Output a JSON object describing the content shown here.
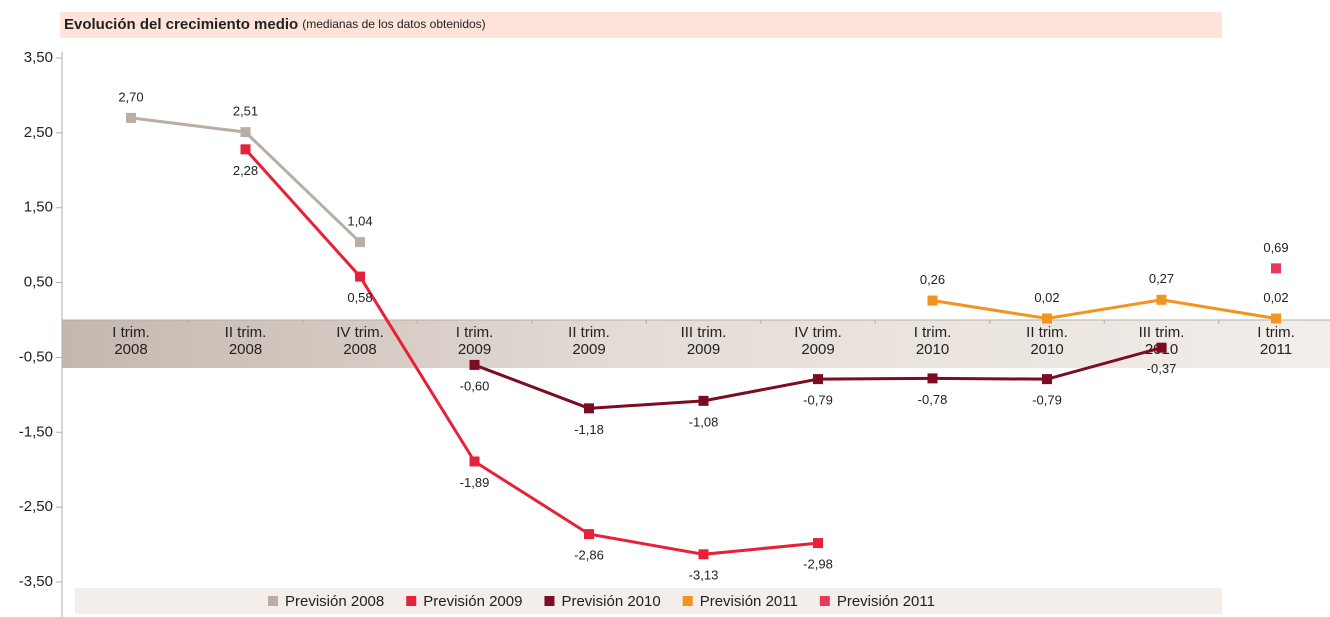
{
  "chart_data": {
    "type": "line",
    "title": "Evolución del crecimiento medio",
    "subtitle": "(medianas de los datos obtenidos)",
    "categories": [
      [
        "I trim.",
        "2008"
      ],
      [
        "II trim.",
        "2008"
      ],
      [
        "IV trim.",
        "2008"
      ],
      [
        "I trim.",
        "2009"
      ],
      [
        "II trim.",
        "2009"
      ],
      [
        "III trim.",
        "2009"
      ],
      [
        "IV trim.",
        "2009"
      ],
      [
        "I trim.",
        "2010"
      ],
      [
        "II trim.",
        "2010"
      ],
      [
        "III trim.",
        "2010"
      ],
      [
        "I trim.",
        "2011"
      ]
    ],
    "series": [
      {
        "name": "Previsión 2008",
        "color": "#b9ada5",
        "label_side": "above",
        "values": [
          2.7,
          2.51,
          1.04,
          null,
          null,
          null,
          null,
          null,
          null,
          null,
          null
        ],
        "value_labels": [
          "2,70",
          "2,51",
          "1,04",
          null,
          null,
          null,
          null,
          null,
          null,
          null,
          null
        ]
      },
      {
        "name": "Previsión 2009",
        "color": "#e62139",
        "label_side": "below",
        "values": [
          null,
          2.28,
          0.58,
          -1.89,
          -2.86,
          -3.13,
          -2.98,
          null,
          null,
          null,
          null
        ],
        "value_labels": [
          null,
          "2,28",
          "0,58",
          "-1,89",
          "-2,86",
          "-3,13",
          "-2,98",
          null,
          null,
          null,
          null
        ]
      },
      {
        "name": "Previsión 2010",
        "color": "#7b0c21",
        "label_side": "below",
        "values": [
          null,
          null,
          null,
          -0.6,
          -1.18,
          -1.08,
          -0.79,
          -0.78,
          -0.79,
          -0.37,
          null
        ],
        "value_labels": [
          null,
          null,
          null,
          "-0,60",
          "-1,18",
          "-1,08",
          "-0,79",
          "-0,78",
          "-0,79",
          "-0,37",
          null
        ]
      },
      {
        "name": "Previsión 2011",
        "color": "#f29420",
        "label_side": "above",
        "values": [
          null,
          null,
          null,
          null,
          null,
          null,
          null,
          0.26,
          0.02,
          0.27,
          0.02
        ],
        "value_labels": [
          null,
          null,
          null,
          null,
          null,
          null,
          null,
          "0,26",
          "0,02",
          "0,27",
          "0,02"
        ]
      },
      {
        "name": "Previsión 2011",
        "color": "#e8395a",
        "label_side": "above",
        "values": [
          null,
          null,
          null,
          null,
          null,
          null,
          null,
          null,
          null,
          null,
          0.69
        ],
        "value_labels": [
          null,
          null,
          null,
          null,
          null,
          null,
          null,
          null,
          null,
          null,
          "0,69"
        ]
      }
    ],
    "ylim": [
      -3.5,
      3.5
    ],
    "yticks": [
      {
        "value": 3.5,
        "label": "3,50"
      },
      {
        "value": 2.5,
        "label": "2,50"
      },
      {
        "value": 1.5,
        "label": "1,50"
      },
      {
        "value": 0.5,
        "label": "0,50"
      },
      {
        "value": -0.5,
        "label": "-0,50"
      },
      {
        "value": -1.5,
        "label": "-1,50"
      },
      {
        "value": -2.5,
        "label": "-2,50"
      },
      {
        "value": -3.5,
        "label": "-3,50"
      }
    ],
    "legend": "bottom"
  }
}
